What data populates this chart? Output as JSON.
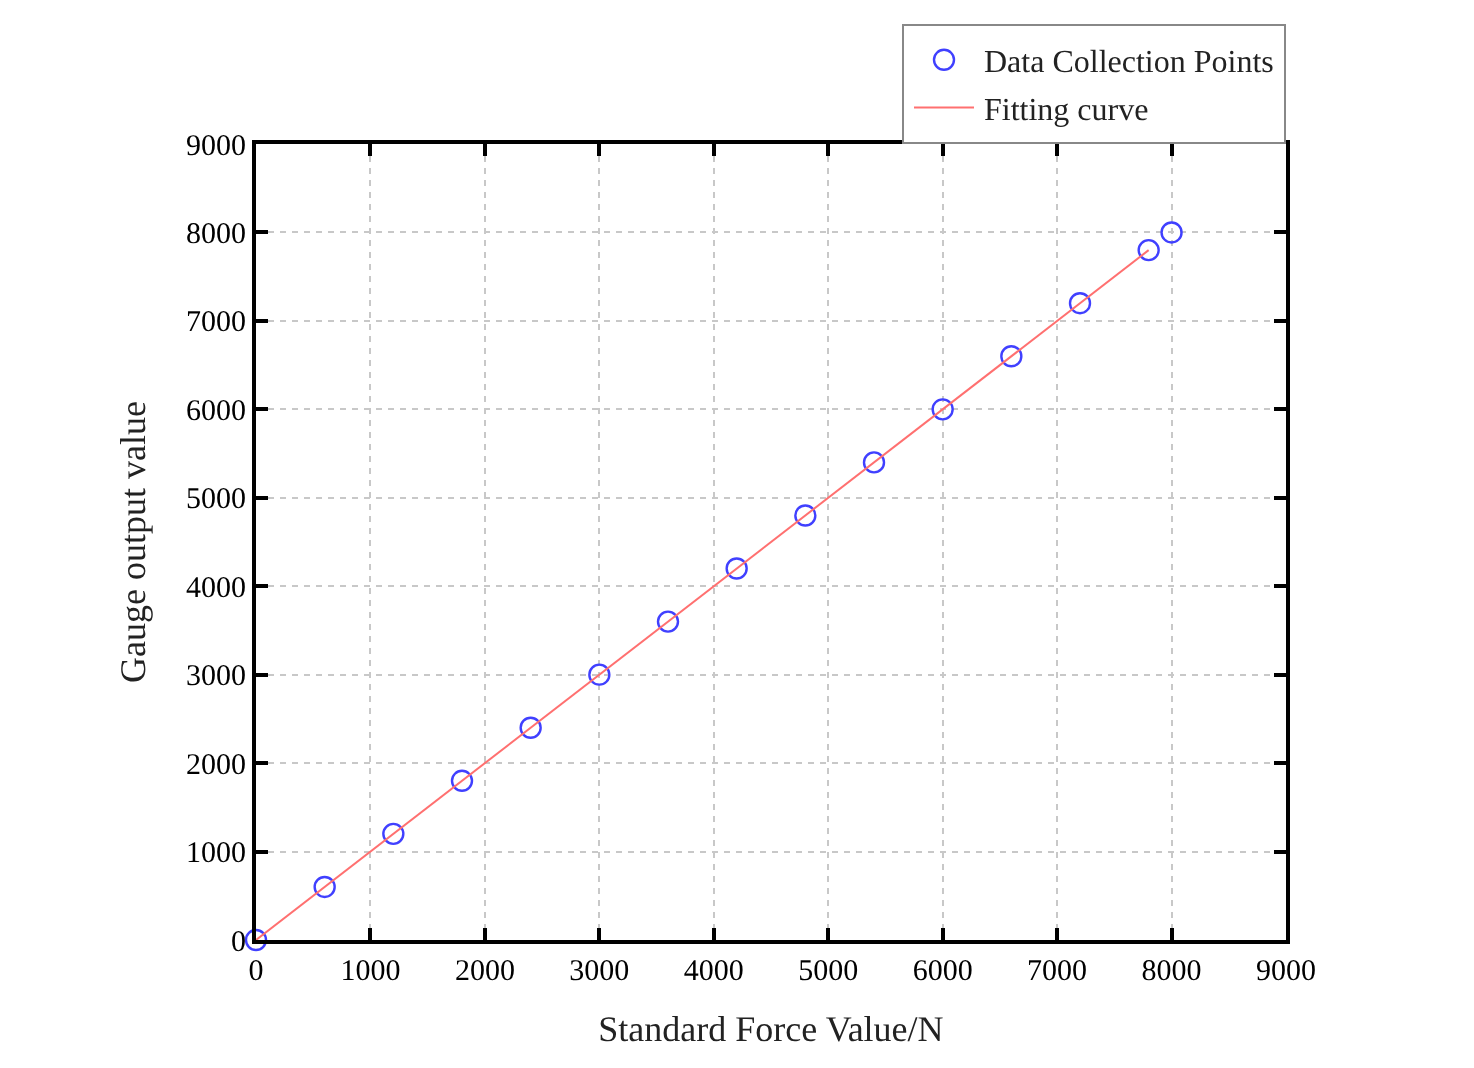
{
  "chart_data": {
    "type": "scatter",
    "xlabel": "Standard Force Value/N",
    "ylabel": "Gauge output value",
    "series": [
      {
        "name": "Data Collection Points",
        "color": "#4040ff",
        "marker": "circle",
        "x": [
          0,
          600,
          1200,
          1800,
          2400,
          3000,
          3600,
          4200,
          4800,
          5400,
          6000,
          6600,
          7200,
          7800,
          8000
        ],
        "values": [
          0,
          600,
          1200,
          1800,
          2400,
          3000,
          3600,
          4200,
          4800,
          5400,
          6000,
          6600,
          7200,
          7800,
          8000
        ]
      },
      {
        "name": "Fitting curve",
        "type": "line",
        "color": "#ff7070",
        "line_style": "solid",
        "x": [
          0,
          7800
        ],
        "values": [
          0,
          7800
        ]
      }
    ],
    "xlim": [
      0,
      9000
    ],
    "ylim": [
      0,
      9000
    ],
    "xticks": [
      0,
      1000,
      2000,
      3000,
      4000,
      5000,
      6000,
      7000,
      8000,
      9000
    ],
    "yticks": [
      0,
      1000,
      2000,
      3000,
      4000,
      5000,
      6000,
      7000,
      8000,
      9000
    ],
    "grid": true,
    "legend": "top right"
  }
}
